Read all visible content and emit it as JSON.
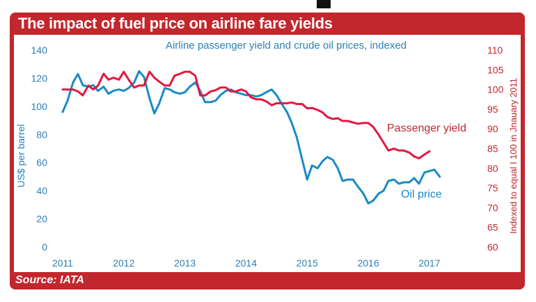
{
  "header": {
    "title": "The impact of fuel price on airline fare yields"
  },
  "footer": {
    "source": "Source: IATA"
  },
  "colors": {
    "frame": "#c1272d",
    "oil": "#1a8ac6",
    "yield": "#e3173f",
    "axis_left": "#2a7fb8",
    "axis_right": "#c1272d"
  },
  "chart_data": {
    "type": "line",
    "subtitle": "Airline passenger yield and crude oil prices, indexed",
    "ylabel_left": "US$ per barrel",
    "ylabel_right": "Indexed to equal I 100 in Jnauary 2011",
    "xlim": [
      2011,
      2017.4
    ],
    "ylim_left": [
      0,
      140
    ],
    "ylim_right": [
      60,
      110
    ],
    "xticks": [
      "2011",
      "2012",
      "2013",
      "2014",
      "2015",
      "2016",
      "2017"
    ],
    "yticks_left": [
      "0",
      "20",
      "40",
      "60",
      "80",
      "100",
      "120",
      "140"
    ],
    "yticks_right": [
      "60",
      "65",
      "70",
      "75",
      "80",
      "85",
      "90",
      "95",
      "100",
      "105",
      "110"
    ],
    "grid": false,
    "series": [
      {
        "name": "Oil price",
        "axis": "left",
        "label": "Oil price",
        "x": [
          2011.0,
          2011.08,
          2011.17,
          2011.25,
          2011.33,
          2011.42,
          2011.5,
          2011.58,
          2011.67,
          2011.75,
          2011.83,
          2011.92,
          2012.0,
          2012.08,
          2012.17,
          2012.25,
          2012.33,
          2012.42,
          2012.5,
          2012.58,
          2012.67,
          2012.75,
          2012.83,
          2012.92,
          2013.0,
          2013.08,
          2013.17,
          2013.25,
          2013.33,
          2013.42,
          2013.5,
          2013.58,
          2013.67,
          2013.75,
          2013.83,
          2013.92,
          2014.0,
          2014.08,
          2014.17,
          2014.25,
          2014.33,
          2014.42,
          2014.5,
          2014.58,
          2014.67,
          2014.75,
          2014.83,
          2014.92,
          2015.0,
          2015.08,
          2015.17,
          2015.25,
          2015.33,
          2015.42,
          2015.5,
          2015.58,
          2015.67,
          2015.75,
          2015.83,
          2015.92,
          2016.0,
          2016.08,
          2016.17,
          2016.25,
          2016.33,
          2016.42,
          2016.5,
          2016.58,
          2016.67,
          2016.75,
          2016.83,
          2016.92,
          2017.0,
          2017.08,
          2017.17
        ],
        "y": [
          96,
          104,
          117,
          123,
          115,
          114,
          115,
          111,
          114,
          109,
          111,
          112,
          111,
          113,
          117,
          125,
          121,
          106,
          95,
          102,
          113,
          112,
          110,
          109,
          110,
          114,
          117,
          111,
          103,
          103,
          104,
          108,
          111,
          112,
          110,
          109,
          108,
          108,
          107,
          108,
          110,
          112,
          108,
          102,
          96,
          88,
          78,
          62,
          48,
          58,
          56,
          61,
          64,
          62,
          56,
          47,
          48,
          48,
          43,
          38,
          31,
          33,
          38,
          40,
          47,
          48,
          45,
          46,
          46,
          49,
          45,
          53,
          54,
          55,
          50
        ]
      },
      {
        "name": "Passenger yield",
        "axis": "right",
        "label": "Passenger yield",
        "x": [
          2011.0,
          2011.08,
          2011.17,
          2011.25,
          2011.33,
          2011.42,
          2011.5,
          2011.58,
          2011.67,
          2011.75,
          2011.83,
          2011.92,
          2012.0,
          2012.08,
          2012.17,
          2012.25,
          2012.33,
          2012.42,
          2012.5,
          2012.58,
          2012.67,
          2012.75,
          2012.83,
          2012.92,
          2013.0,
          2013.08,
          2013.17,
          2013.25,
          2013.33,
          2013.42,
          2013.5,
          2013.58,
          2013.67,
          2013.75,
          2013.83,
          2013.92,
          2014.0,
          2014.08,
          2014.17,
          2014.25,
          2014.33,
          2014.42,
          2014.5,
          2014.58,
          2014.67,
          2014.75,
          2014.83,
          2014.92,
          2015.0,
          2015.08,
          2015.17,
          2015.25,
          2015.33,
          2015.42,
          2015.5,
          2015.58,
          2015.67,
          2015.75,
          2015.83,
          2015.92,
          2016.0,
          2016.08,
          2016.17,
          2016.25,
          2016.33,
          2016.42,
          2016.5,
          2016.58,
          2016.67,
          2016.75,
          2016.83,
          2016.92,
          2017.0
        ],
        "y": [
          100,
          100,
          100,
          99.5,
          98.5,
          101,
          100,
          101,
          104,
          102.5,
          103,
          102.5,
          104.5,
          102.5,
          100.5,
          101,
          101,
          104.5,
          103,
          102,
          101,
          101,
          103.5,
          104,
          104.5,
          104.5,
          103.5,
          98.5,
          98.5,
          99.5,
          99.8,
          100.5,
          100.5,
          99.5,
          99.5,
          100,
          99.5,
          98,
          97.5,
          97.5,
          97,
          96,
          96.5,
          96.5,
          96.5,
          96.7,
          96.3,
          96.3,
          95.2,
          95.3,
          94.8,
          94.2,
          93,
          92.5,
          92.7,
          92,
          92,
          91.6,
          91.3,
          91.5,
          91.5,
          90.5,
          88.5,
          86.5,
          84.5,
          85,
          84.5,
          84.5,
          84,
          83,
          82.5,
          83.5,
          84.3
        ]
      }
    ],
    "annotations": [
      "Oil price",
      "Passenger yield"
    ]
  }
}
